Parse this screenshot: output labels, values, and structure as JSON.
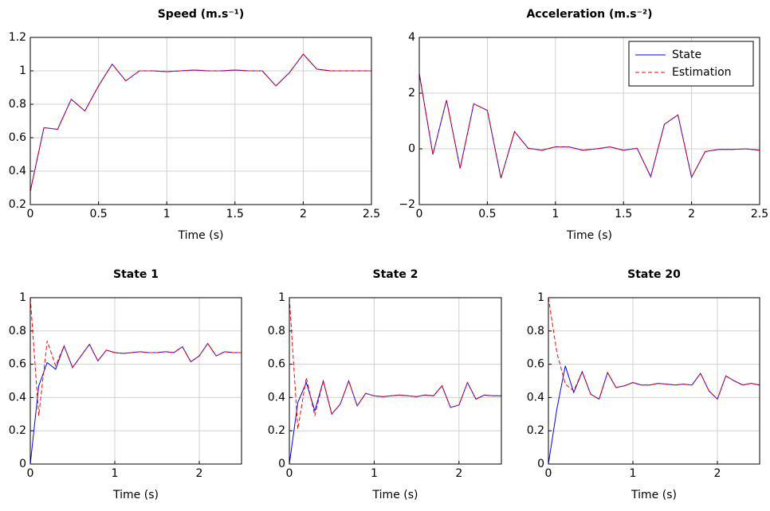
{
  "chart_data": [
    {
      "type": "line",
      "title": "Speed (m.s⁻¹)",
      "xlabel": "Time (s)",
      "x": [
        0,
        0.1,
        0.2,
        0.3,
        0.4,
        0.5,
        0.6,
        0.7,
        0.8,
        0.9,
        1,
        1.1,
        1.2,
        1.3,
        1.4,
        1.5,
        1.6,
        1.7,
        1.8,
        1.9,
        2,
        2.1,
        2.2,
        2.3,
        2.4,
        2.5
      ],
      "series": [
        {
          "color": "#0000ff",
          "dash": false,
          "values": [
            0.28,
            0.66,
            0.65,
            0.83,
            0.76,
            0.91,
            1.04,
            0.94,
            1.0,
            1.0,
            0.995,
            1.0,
            1.005,
            1.0,
            1.0,
            1.005,
            1.0,
            1.0,
            0.91,
            0.99,
            1.1,
            1.01,
            1.0,
            1.0,
            1.0,
            1.0
          ]
        },
        {
          "color": "#ff0000",
          "dash": true,
          "values": [
            0.28,
            0.66,
            0.65,
            0.83,
            0.76,
            0.91,
            1.04,
            0.94,
            1.0,
            1.0,
            0.995,
            1.0,
            1.005,
            1.0,
            1.0,
            1.005,
            1.0,
            1.0,
            0.91,
            0.99,
            1.1,
            1.01,
            1.0,
            1.0,
            1.0,
            1.0
          ]
        }
      ],
      "xlim": [
        0,
        2.5
      ],
      "xticks": [
        0,
        0.5,
        1,
        1.5,
        2,
        2.5
      ],
      "ylim": [
        0.2,
        1.2
      ],
      "yticks": [
        0.2,
        0.4,
        0.6,
        0.8,
        1,
        1.2
      ],
      "grid": true
    },
    {
      "type": "line",
      "title": "Acceleration (m.s⁻²)",
      "xlabel": "Time (s)",
      "x": [
        0,
        0.1,
        0.2,
        0.3,
        0.4,
        0.5,
        0.6,
        0.7,
        0.8,
        0.9,
        1,
        1.1,
        1.2,
        1.3,
        1.4,
        1.5,
        1.6,
        1.7,
        1.8,
        1.9,
        2,
        2.1,
        2.2,
        2.3,
        2.4,
        2.5
      ],
      "series": [
        {
          "name": "State",
          "color": "#0000ff",
          "dash": false,
          "values": [
            2.7,
            -0.2,
            1.75,
            -0.7,
            1.62,
            1.38,
            -1.05,
            0.62,
            0.02,
            -0.05,
            0.07,
            0.07,
            -0.05,
            0.0,
            0.07,
            -0.05,
            0.02,
            -1.0,
            0.88,
            1.22,
            -1.02,
            -0.1,
            -0.02,
            -0.02,
            0.0,
            -0.05
          ]
        },
        {
          "name": "Estimation",
          "color": "#ff0000",
          "dash": true,
          "values": [
            2.7,
            -0.2,
            1.75,
            -0.7,
            1.62,
            1.38,
            -1.05,
            0.62,
            0.02,
            -0.05,
            0.07,
            0.07,
            -0.05,
            0.0,
            0.07,
            -0.05,
            0.02,
            -1.0,
            0.88,
            1.22,
            -1.02,
            -0.1,
            -0.02,
            -0.02,
            0.0,
            -0.05
          ]
        }
      ],
      "xlim": [
        0,
        2.5
      ],
      "xticks": [
        0,
        0.5,
        1,
        1.5,
        2,
        2.5
      ],
      "ylim": [
        -2,
        4
      ],
      "yticks": [
        {
          "value": -2,
          "label": "−2"
        },
        0,
        2,
        4
      ],
      "grid": true,
      "legend": "north east"
    },
    {
      "type": "line",
      "title": "State 1",
      "xlabel": "Time (s)",
      "x": [
        0,
        0.1,
        0.2,
        0.3,
        0.4,
        0.5,
        0.6,
        0.7,
        0.8,
        0.9,
        1,
        1.1,
        1.2,
        1.3,
        1.4,
        1.5,
        1.6,
        1.7,
        1.8,
        1.9,
        2,
        2.1,
        2.2,
        2.3,
        2.4,
        2.5
      ],
      "series": [
        {
          "color": "#0000ff",
          "dash": false,
          "values": [
            0,
            0.47,
            0.61,
            0.57,
            0.71,
            0.58,
            0.65,
            0.72,
            0.62,
            0.685,
            0.67,
            0.665,
            0.67,
            0.675,
            0.67,
            0.67,
            0.675,
            0.67,
            0.705,
            0.615,
            0.65,
            0.725,
            0.65,
            0.675,
            0.67,
            0.67
          ]
        },
        {
          "color": "#ff0000",
          "dash": true,
          "values": [
            1,
            0.29,
            0.74,
            0.59,
            0.71,
            0.58,
            0.65,
            0.72,
            0.62,
            0.685,
            0.67,
            0.665,
            0.67,
            0.675,
            0.67,
            0.67,
            0.675,
            0.67,
            0.705,
            0.615,
            0.65,
            0.725,
            0.65,
            0.675,
            0.67,
            0.67
          ]
        }
      ],
      "xlim": [
        0,
        2.5
      ],
      "xticks": [
        0,
        1,
        2
      ],
      "ylim": [
        0,
        1
      ],
      "yticks": [
        0,
        0.2,
        0.4,
        0.6,
        0.8,
        1
      ],
      "grid": true
    },
    {
      "type": "line",
      "title": "State 2",
      "xlabel": "Time (s)",
      "x": [
        0,
        0.1,
        0.2,
        0.3,
        0.4,
        0.5,
        0.6,
        0.7,
        0.8,
        0.9,
        1,
        1.1,
        1.2,
        1.3,
        1.4,
        1.5,
        1.6,
        1.7,
        1.8,
        1.9,
        2,
        2.1,
        2.2,
        2.3,
        2.4,
        2.5
      ],
      "series": [
        {
          "color": "#0000ff",
          "dash": false,
          "values": [
            0,
            0.37,
            0.49,
            0.32,
            0.5,
            0.3,
            0.36,
            0.5,
            0.35,
            0.425,
            0.41,
            0.405,
            0.41,
            0.415,
            0.41,
            0.405,
            0.415,
            0.41,
            0.47,
            0.34,
            0.355,
            0.49,
            0.39,
            0.415,
            0.41,
            0.41
          ]
        },
        {
          "color": "#ff0000",
          "dash": true,
          "values": [
            1,
            0.21,
            0.52,
            0.29,
            0.5,
            0.3,
            0.36,
            0.5,
            0.35,
            0.425,
            0.41,
            0.405,
            0.41,
            0.415,
            0.41,
            0.405,
            0.415,
            0.41,
            0.47,
            0.34,
            0.355,
            0.49,
            0.39,
            0.415,
            0.41,
            0.41
          ]
        }
      ],
      "xlim": [
        0,
        2.5
      ],
      "xticks": [
        0,
        1,
        2
      ],
      "ylim": [
        0,
        1
      ],
      "yticks": [
        0,
        0.2,
        0.4,
        0.6,
        0.8,
        1
      ],
      "grid": true
    },
    {
      "type": "line",
      "title": "State 20",
      "xlabel": "Time (s)",
      "x": [
        0,
        0.1,
        0.2,
        0.3,
        0.4,
        0.5,
        0.6,
        0.7,
        0.8,
        0.9,
        1,
        1.1,
        1.2,
        1.3,
        1.4,
        1.5,
        1.6,
        1.7,
        1.8,
        1.9,
        2,
        2.1,
        2.2,
        2.3,
        2.4,
        2.5
      ],
      "series": [
        {
          "color": "#0000ff",
          "dash": false,
          "values": [
            0,
            0.33,
            0.59,
            0.43,
            0.555,
            0.42,
            0.39,
            0.55,
            0.46,
            0.47,
            0.49,
            0.475,
            0.475,
            0.485,
            0.48,
            0.475,
            0.48,
            0.475,
            0.545,
            0.44,
            0.39,
            0.53,
            0.5,
            0.475,
            0.485,
            0.475
          ]
        },
        {
          "color": "#ff0000",
          "dash": true,
          "values": [
            1,
            0.67,
            0.48,
            0.44,
            0.555,
            0.42,
            0.39,
            0.55,
            0.46,
            0.47,
            0.49,
            0.475,
            0.475,
            0.485,
            0.48,
            0.475,
            0.48,
            0.475,
            0.545,
            0.44,
            0.39,
            0.53,
            0.5,
            0.475,
            0.485,
            0.475
          ]
        }
      ],
      "xlim": [
        0,
        2.5
      ],
      "xticks": [
        0,
        1,
        2
      ],
      "ylim": [
        0,
        1
      ],
      "yticks": [
        0,
        0.2,
        0.4,
        0.6,
        0.8,
        1
      ],
      "grid": true
    }
  ]
}
